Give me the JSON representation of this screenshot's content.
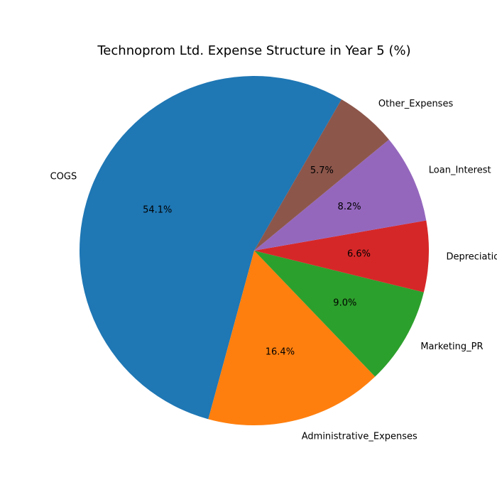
{
  "chart_data": {
    "type": "pie",
    "title": "Technoprom Ltd. Expense Structure in Year 5 (%)",
    "start_angle_deg": 60,
    "direction": "counterclockwise",
    "slices": [
      {
        "label": "COGS",
        "value": 54.1,
        "display": "54.1%",
        "color": "#1f77b4"
      },
      {
        "label": "Administrative_Expenses",
        "value": 16.4,
        "display": "16.4%",
        "color": "#ff7f0e"
      },
      {
        "label": "Marketing_PR",
        "value": 9.0,
        "display": "9.0%",
        "color": "#2ca02c"
      },
      {
        "label": "Depreciation",
        "value": 6.6,
        "display": "6.6%",
        "color": "#d62728"
      },
      {
        "label": "Loan_Interest",
        "value": 8.2,
        "display": "8.2%",
        "color": "#9467bd"
      },
      {
        "label": "Other_Expenses",
        "value": 5.7,
        "display": "5.7%",
        "color": "#8c564b"
      }
    ]
  }
}
